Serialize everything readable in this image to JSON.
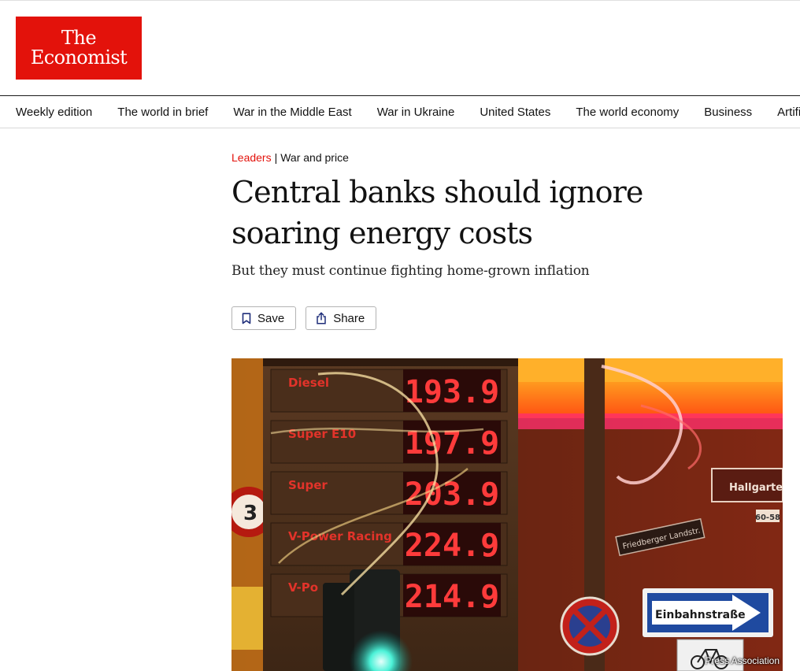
{
  "logo": {
    "line1": "The",
    "line2": "Economist"
  },
  "nav": {
    "items": [
      "Weekly edition",
      "The world in brief",
      "War in the Middle East",
      "War in Ukraine",
      "United States",
      "The world economy",
      "Business",
      "Artificial intelligence"
    ]
  },
  "article": {
    "section": "Leaders",
    "separator": "|",
    "topic": "War and price",
    "headline": "Central banks should ignore soaring energy costs",
    "subheadline": "But they must continue fighting home-grown inflation",
    "actions": {
      "save_label": "Save",
      "share_label": "Share"
    }
  },
  "image": {
    "credit": "Press Association",
    "price_board": [
      {
        "label": "Diesel",
        "price": "193.9"
      },
      {
        "label": "Super E10",
        "price": "197.9"
      },
      {
        "label": "Super",
        "price": "203.9"
      },
      {
        "label": "V-Power Racing",
        "price": "224.9"
      },
      {
        "label": "V-Po",
        "price": "214.9"
      }
    ],
    "street_sign": "Hallgartenstra",
    "street_sign_number": "60-58",
    "small_sign": "Friedberger Landstr.",
    "one_way_sign": "Einbahnstraße",
    "round_sign": "3",
    "accent_color": "#e3120b"
  }
}
